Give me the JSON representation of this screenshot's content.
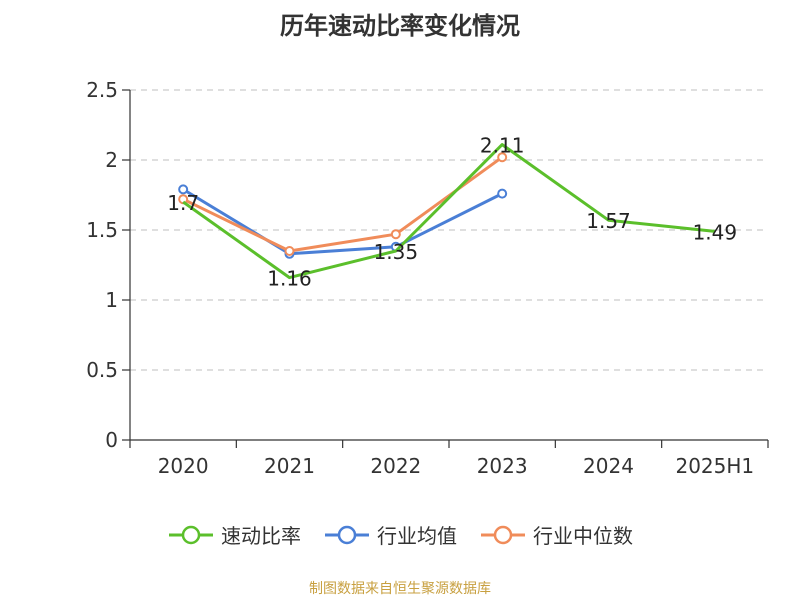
{
  "chart_data": {
    "type": "line",
    "title": "历年速动比率变化情况",
    "categories": [
      "2020",
      "2021",
      "2022",
      "2023",
      "2024",
      "2025H1"
    ],
    "ylim": [
      0,
      2.5
    ],
    "yticks": [
      "0",
      "0.5",
      "1",
      "1.5",
      "2",
      "2.5"
    ],
    "grid": true,
    "legend_position": "bottom",
    "series": [
      {
        "name": "速动比率",
        "color": "#5bbf2b",
        "values": [
          1.7,
          1.16,
          1.35,
          2.11,
          1.57,
          1.49
        ],
        "labels": [
          "1.7",
          "1.16",
          "1.35",
          "2.11",
          "1.57",
          "1.49"
        ]
      },
      {
        "name": "行业均值",
        "color": "#4a7fd6",
        "values": [
          1.79,
          1.33,
          1.38,
          1.76,
          null,
          null
        ]
      },
      {
        "name": "行业中位数",
        "color": "#f08c5a",
        "values": [
          1.72,
          1.35,
          1.47,
          2.02,
          null,
          null
        ]
      }
    ]
  },
  "source": "制图数据来自恒生聚源数据库"
}
